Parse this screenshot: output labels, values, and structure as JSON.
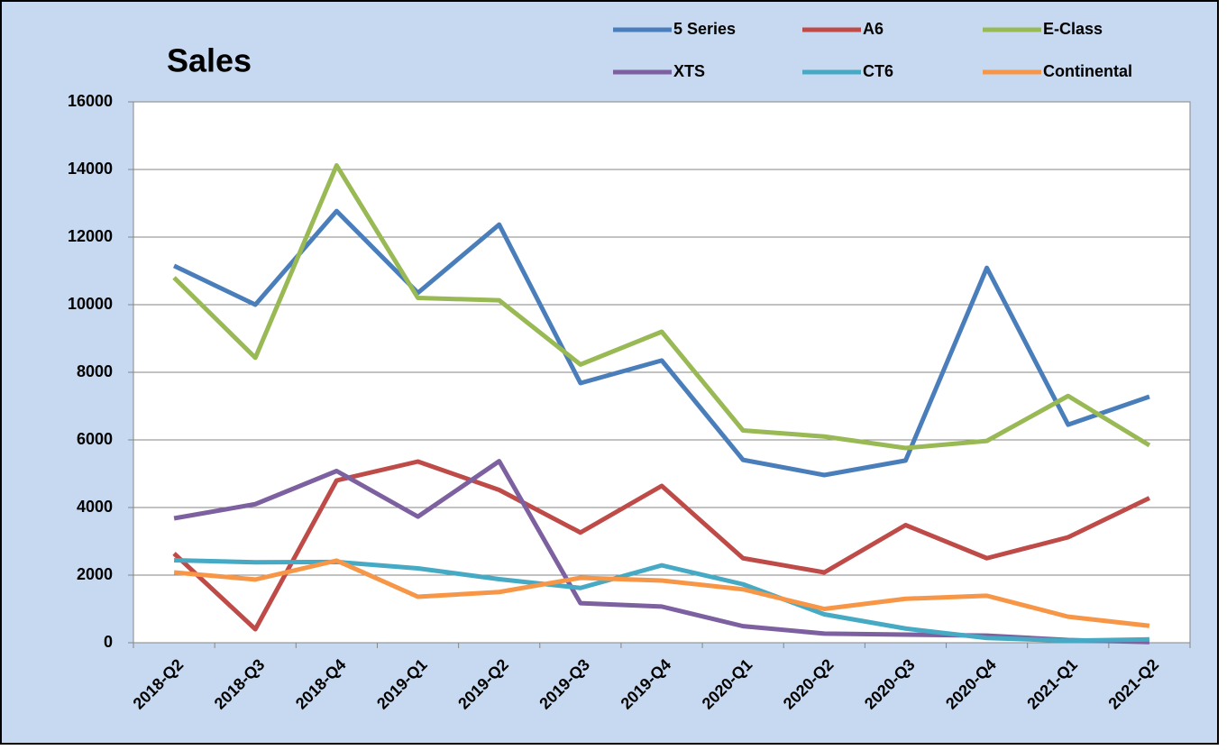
{
  "chart_data": {
    "type": "line",
    "title": "Sales",
    "categories": [
      "2018-Q2",
      "2018-Q3",
      "2018-Q4",
      "2019-Q1",
      "2019-Q2",
      "2019-Q3",
      "2019-Q4",
      "2020-Q1",
      "2020-Q2",
      "2020-Q3",
      "2020-Q4",
      "2021-Q1",
      "2021-Q2"
    ],
    "series": [
      {
        "name": "5 Series",
        "color": "#4a7ebb",
        "values": [
          11150,
          10000,
          12770,
          10350,
          12370,
          7680,
          8350,
          5410,
          4960,
          5390,
          11090,
          6450,
          7280
        ]
      },
      {
        "name": "A6",
        "color": "#be4b48",
        "values": [
          2640,
          400,
          4800,
          5360,
          4520,
          3260,
          4640,
          2500,
          2080,
          3480,
          2500,
          3120,
          4280
        ]
      },
      {
        "name": "E-Class",
        "color": "#98b954",
        "values": [
          10800,
          8430,
          14120,
          10200,
          10130,
          8230,
          9200,
          6280,
          6100,
          5760,
          5970,
          7300,
          5840
        ]
      },
      {
        "name": "XTS",
        "color": "#7d60a0",
        "values": [
          3680,
          4100,
          5080,
          3730,
          5370,
          1170,
          1070,
          490,
          270,
          240,
          210,
          80,
          20
        ]
      },
      {
        "name": "CT6",
        "color": "#46aac5",
        "values": [
          2440,
          2380,
          2390,
          2200,
          1880,
          1620,
          2290,
          1730,
          840,
          420,
          140,
          60,
          100
        ]
      },
      {
        "name": "Continental",
        "color": "#f79646",
        "values": [
          2080,
          1870,
          2430,
          1360,
          1500,
          1920,
          1840,
          1580,
          1000,
          1300,
          1390,
          770,
          500
        ]
      }
    ],
    "ylim": [
      0,
      16000
    ],
    "yticks": [
      0,
      2000,
      4000,
      6000,
      8000,
      10000,
      12000,
      14000,
      16000
    ],
    "grid": true
  }
}
